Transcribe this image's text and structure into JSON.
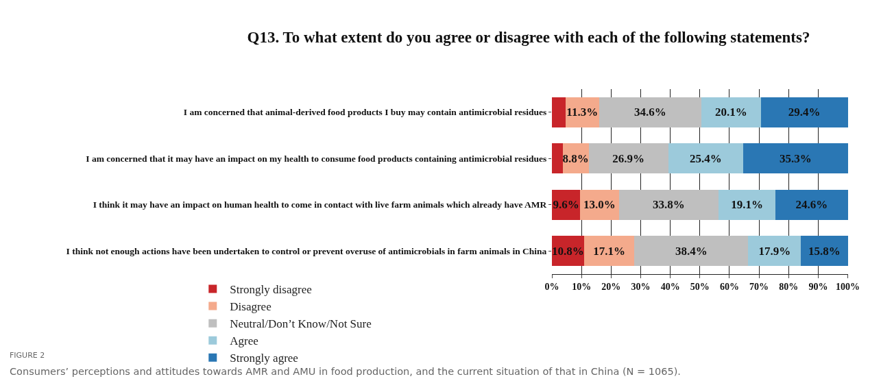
{
  "chart_data": {
    "type": "bar",
    "orientation": "horizontal",
    "stacked": true,
    "title": "Q13. To what extent do you agree or disagree with each of the following statements?",
    "categories": [
      "I am concerned that animal-derived food products I buy may contain antimicrobial residues",
      "I am concerned that it may have an impact on my health to consume food products containing antimicrobial residues",
      "I think it may have an impact on human health to come in contact with live farm animals which already have AMR",
      "I think not enough actions have been undertaken to control or prevent overuse of antimicrobials in farm animals in China"
    ],
    "series": [
      {
        "name": "Strongly disagree",
        "color": "#c8252a",
        "values": [
          4.6,
          3.6,
          9.6,
          10.8
        ],
        "value_labels": [
          null,
          null,
          "9.6%",
          "10.8%"
        ]
      },
      {
        "name": "Disagree",
        "color": "#f4aa8c",
        "values": [
          11.3,
          8.8,
          13.0,
          17.1
        ],
        "value_labels": [
          "11.3%",
          "8.8%",
          "13.0%",
          "17.1%"
        ]
      },
      {
        "name": "Neutral/Don’t Know/Not Sure",
        "color": "#bfbfbf",
        "values": [
          34.6,
          26.9,
          33.8,
          38.4
        ],
        "value_labels": [
          "34.6%",
          "26.9%",
          "33.8%",
          "38.4%"
        ]
      },
      {
        "name": "Agree",
        "color": "#9ccadb",
        "values": [
          20.1,
          25.4,
          19.1,
          17.9
        ],
        "value_labels": [
          "20.1%",
          "25.4%",
          "19.1%",
          "17.9%"
        ]
      },
      {
        "name": "Strongly agree",
        "color": "#2a77b4",
        "values": [
          29.4,
          35.3,
          24.6,
          15.8
        ],
        "value_labels": [
          "29.4%",
          "35.3%",
          "24.6%",
          "15.8%"
        ]
      }
    ],
    "xlim": [
      0,
      100.1
    ],
    "xticks": [
      {
        "value": 0,
        "label": "0%"
      },
      {
        "value": 10,
        "label": "10%"
      },
      {
        "value": 20,
        "label": "20%"
      },
      {
        "value": 30,
        "label": "30%"
      },
      {
        "value": 40,
        "label": "40%"
      },
      {
        "value": 50,
        "label": "50%"
      },
      {
        "value": 60,
        "label": "60%"
      },
      {
        "value": 70,
        "label": "70%"
      },
      {
        "value": 80,
        "label": "80%"
      },
      {
        "value": 90,
        "label": "90%"
      },
      {
        "value": 100,
        "label": "100%"
      }
    ],
    "grid": "x",
    "legend": "bottom",
    "annotations": [
      "FIGURE 2",
      "Consumers’ perceptions and attitudes towards AMR and AMU in food production, and the current situation of that in China (N = 1065)."
    ]
  }
}
